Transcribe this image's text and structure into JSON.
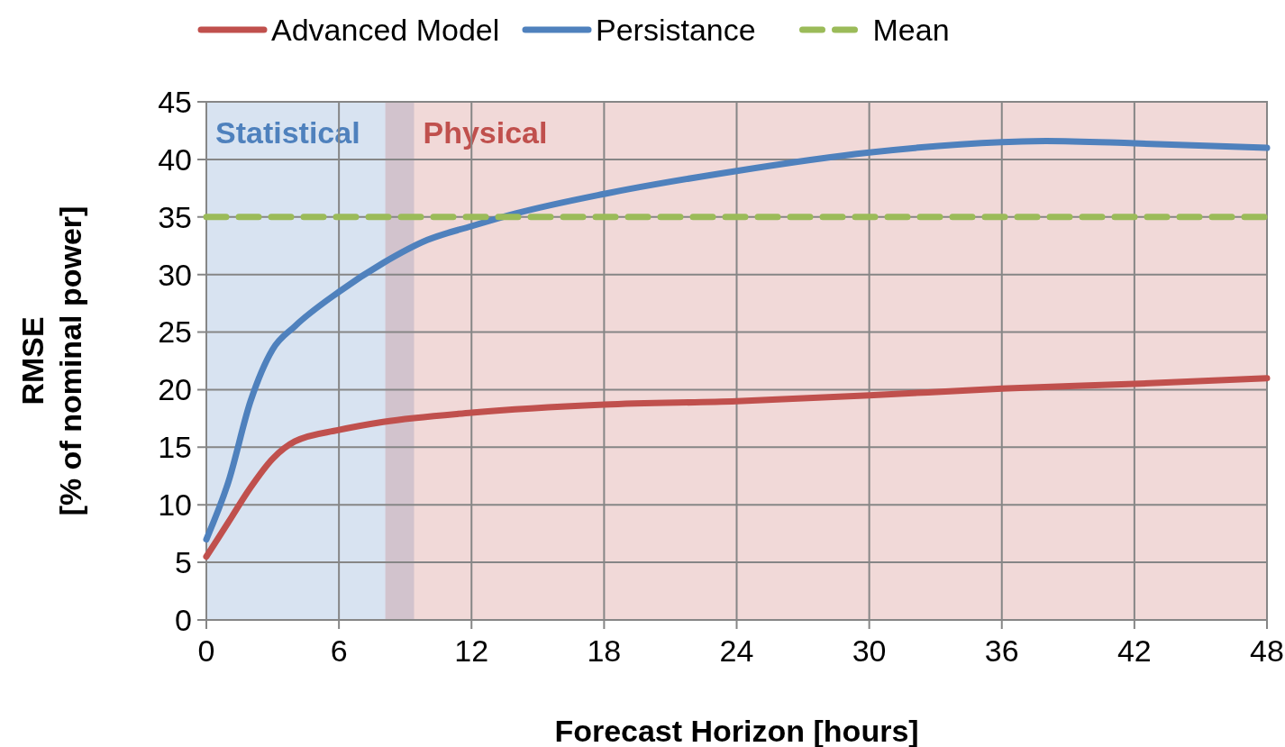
{
  "chart_data": {
    "type": "line",
    "xlabel": "Forecast Horizon [hours]",
    "ylabel": "RMSE\n[% of nominal power]",
    "xlim": [
      0,
      48
    ],
    "xticks": [
      0,
      6,
      12,
      18,
      24,
      30,
      36,
      42,
      48
    ],
    "ylim": [
      0,
      45
    ],
    "yticks": [
      0,
      5,
      10,
      15,
      20,
      25,
      30,
      35,
      40,
      45
    ],
    "grid": true,
    "legend": "top",
    "line_style": "solid",
    "bands": [
      {
        "axis": "x",
        "from": 0,
        "to": 9.4,
        "label": "Statistical",
        "color": "#4f81bd"
      },
      {
        "axis": "x",
        "from": 8.1,
        "to": 48,
        "label": "Physical",
        "color": "#c0504d"
      }
    ],
    "series": [
      {
        "name": "Advanced Model",
        "color": "#c0504d",
        "x": [
          0,
          1,
          2,
          3,
          4,
          6,
          8,
          12,
          18,
          24,
          30,
          36,
          42,
          48
        ],
        "values": [
          5.5,
          8.5,
          11.5,
          14,
          15.5,
          16.5,
          17.2,
          18,
          18.7,
          19,
          19.5,
          20.1,
          20.5,
          21
        ]
      },
      {
        "name": "Persistance",
        "color": "#4f81bd",
        "x": [
          0,
          1,
          2,
          3,
          4,
          6,
          8,
          10,
          12,
          14,
          18,
          24,
          30,
          36,
          38,
          42,
          48
        ],
        "values": [
          7,
          12,
          19,
          23.5,
          25.5,
          28.5,
          31,
          33,
          34.2,
          35.3,
          37,
          39,
          40.6,
          41.5,
          41.6,
          41.4,
          41
        ]
      },
      {
        "name": "Mean",
        "color": "#9bbb59",
        "line_style": "dashed",
        "x": [
          0,
          48
        ],
        "values": [
          35,
          35
        ]
      }
    ]
  }
}
